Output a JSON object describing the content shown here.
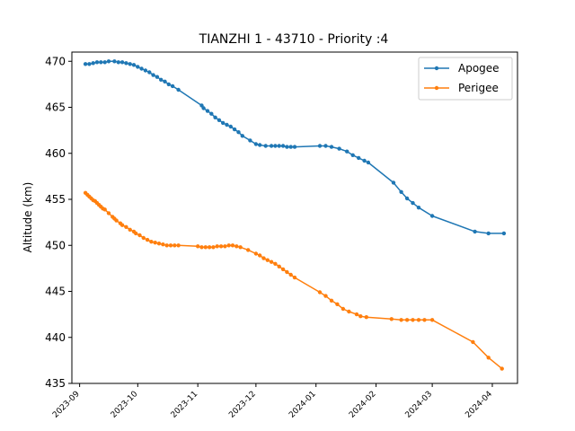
{
  "chart_data": {
    "type": "line",
    "title": "TIANZHI 1 - 43710 - Priority :4",
    "xlabel": "",
    "ylabel": "Altitude (km)",
    "ylim": [
      435,
      471
    ],
    "yticks": [
      435,
      440,
      445,
      450,
      455,
      460,
      465,
      470
    ],
    "xlim": [
      "2023-08-28",
      "2024-04-14"
    ],
    "xticks": [
      "2023-09",
      "2023-10",
      "2023-11",
      "2023-12",
      "2024-01",
      "2024-02",
      "2024-03",
      "2024-04"
    ],
    "grid": false,
    "legend_position": "top-right",
    "colors": {
      "apogee": "#1f77b4",
      "perigee": "#ff7f0e"
    },
    "series": [
      {
        "name": "Apogee",
        "points": [
          [
            "2023-09-04",
            469.7
          ],
          [
            "2023-09-06",
            469.7
          ],
          [
            "2023-09-08",
            469.8
          ],
          [
            "2023-09-10",
            469.9
          ],
          [
            "2023-09-12",
            469.9
          ],
          [
            "2023-09-14",
            469.9
          ],
          [
            "2023-09-16",
            470.0
          ],
          [
            "2023-09-19",
            470.0
          ],
          [
            "2023-09-21",
            469.9
          ],
          [
            "2023-09-23",
            469.9
          ],
          [
            "2023-09-25",
            469.8
          ],
          [
            "2023-09-27",
            469.7
          ],
          [
            "2023-09-29",
            469.6
          ],
          [
            "2023-10-01",
            469.4
          ],
          [
            "2023-10-03",
            469.2
          ],
          [
            "2023-10-05",
            469.0
          ],
          [
            "2023-10-07",
            468.8
          ],
          [
            "2023-10-09",
            468.5
          ],
          [
            "2023-10-11",
            468.3
          ],
          [
            "2023-10-13",
            468.0
          ],
          [
            "2023-10-15",
            467.8
          ],
          [
            "2023-10-17",
            467.5
          ],
          [
            "2023-10-19",
            467.3
          ],
          [
            "2023-10-22",
            466.9
          ],
          [
            "2023-11-03",
            465.2
          ],
          [
            "2023-11-04",
            464.9
          ],
          [
            "2023-11-06",
            464.6
          ],
          [
            "2023-11-08",
            464.3
          ],
          [
            "2023-11-10",
            463.9
          ],
          [
            "2023-11-12",
            463.6
          ],
          [
            "2023-11-14",
            463.3
          ],
          [
            "2023-11-16",
            463.1
          ],
          [
            "2023-11-18",
            462.9
          ],
          [
            "2023-11-20",
            462.6
          ],
          [
            "2023-11-22",
            462.3
          ],
          [
            "2023-11-24",
            461.9
          ],
          [
            "2023-11-28",
            461.4
          ],
          [
            "2023-12-01",
            461.0
          ],
          [
            "2023-12-03",
            460.9
          ],
          [
            "2023-12-06",
            460.8
          ],
          [
            "2023-12-09",
            460.8
          ],
          [
            "2023-12-11",
            460.8
          ],
          [
            "2023-12-13",
            460.8
          ],
          [
            "2023-12-15",
            460.8
          ],
          [
            "2023-12-17",
            460.7
          ],
          [
            "2023-12-19",
            460.7
          ],
          [
            "2023-12-21",
            460.7
          ],
          [
            "2024-01-03",
            460.8
          ],
          [
            "2024-01-06",
            460.8
          ],
          [
            "2024-01-09",
            460.7
          ],
          [
            "2024-01-13",
            460.5
          ],
          [
            "2024-01-17",
            460.2
          ],
          [
            "2024-01-20",
            459.8
          ],
          [
            "2024-01-23",
            459.5
          ],
          [
            "2024-01-26",
            459.2
          ],
          [
            "2024-01-28",
            459.0
          ],
          [
            "2024-02-10",
            456.8
          ],
          [
            "2024-02-14",
            455.8
          ],
          [
            "2024-02-17",
            455.1
          ],
          [
            "2024-02-20",
            454.6
          ],
          [
            "2024-02-23",
            454.1
          ],
          [
            "2024-03-01",
            453.2
          ],
          [
            "2024-03-23",
            451.5
          ],
          [
            "2024-03-30",
            451.3
          ],
          [
            "2024-04-07",
            451.3
          ]
        ]
      },
      {
        "name": "Perigee",
        "points": [
          [
            "2023-09-04",
            455.7
          ],
          [
            "2023-09-05",
            455.5
          ],
          [
            "2023-09-06",
            455.3
          ],
          [
            "2023-09-07",
            455.1
          ],
          [
            "2023-09-08",
            454.9
          ],
          [
            "2023-09-09",
            454.8
          ],
          [
            "2023-09-10",
            454.6
          ],
          [
            "2023-09-11",
            454.4
          ],
          [
            "2023-09-12",
            454.2
          ],
          [
            "2023-09-13",
            454.0
          ],
          [
            "2023-09-14",
            453.9
          ],
          [
            "2023-09-16",
            453.5
          ],
          [
            "2023-09-18",
            453.1
          ],
          [
            "2023-09-19",
            452.9
          ],
          [
            "2023-09-20",
            452.7
          ],
          [
            "2023-09-22",
            452.4
          ],
          [
            "2023-09-23",
            452.2
          ],
          [
            "2023-09-25",
            452.0
          ],
          [
            "2023-09-27",
            451.7
          ],
          [
            "2023-09-29",
            451.5
          ],
          [
            "2023-09-30",
            451.3
          ],
          [
            "2023-10-02",
            451.1
          ],
          [
            "2023-10-04",
            450.8
          ],
          [
            "2023-10-06",
            450.6
          ],
          [
            "2023-10-08",
            450.4
          ],
          [
            "2023-10-10",
            450.3
          ],
          [
            "2023-10-12",
            450.2
          ],
          [
            "2023-10-14",
            450.1
          ],
          [
            "2023-10-16",
            450.0
          ],
          [
            "2023-10-18",
            450.0
          ],
          [
            "2023-10-20",
            450.0
          ],
          [
            "2023-10-22",
            450.0
          ],
          [
            "2023-11-01",
            449.9
          ],
          [
            "2023-11-03",
            449.8
          ],
          [
            "2023-11-05",
            449.8
          ],
          [
            "2023-11-07",
            449.8
          ],
          [
            "2023-11-09",
            449.8
          ],
          [
            "2023-11-11",
            449.9
          ],
          [
            "2023-11-13",
            449.9
          ],
          [
            "2023-11-15",
            449.9
          ],
          [
            "2023-11-17",
            450.0
          ],
          [
            "2023-11-19",
            450.0
          ],
          [
            "2023-11-21",
            449.9
          ],
          [
            "2023-11-23",
            449.8
          ],
          [
            "2023-11-27",
            449.5
          ],
          [
            "2023-12-01",
            449.1
          ],
          [
            "2023-12-03",
            448.9
          ],
          [
            "2023-12-05",
            448.6
          ],
          [
            "2023-12-07",
            448.4
          ],
          [
            "2023-12-09",
            448.2
          ],
          [
            "2023-12-11",
            448.0
          ],
          [
            "2023-12-13",
            447.7
          ],
          [
            "2023-12-15",
            447.4
          ],
          [
            "2023-12-17",
            447.1
          ],
          [
            "2023-12-19",
            446.8
          ],
          [
            "2023-12-21",
            446.5
          ],
          [
            "2024-01-03",
            444.9
          ],
          [
            "2024-01-06",
            444.5
          ],
          [
            "2024-01-09",
            444.0
          ],
          [
            "2024-01-12",
            443.6
          ],
          [
            "2024-01-15",
            443.1
          ],
          [
            "2024-01-18",
            442.8
          ],
          [
            "2024-01-22",
            442.5
          ],
          [
            "2024-01-24",
            442.3
          ],
          [
            "2024-01-27",
            442.2
          ],
          [
            "2024-02-09",
            442.0
          ],
          [
            "2024-02-14",
            441.9
          ],
          [
            "2024-02-17",
            441.9
          ],
          [
            "2024-02-20",
            441.9
          ],
          [
            "2024-02-23",
            441.9
          ],
          [
            "2024-02-26",
            441.9
          ],
          [
            "2024-03-01",
            441.9
          ],
          [
            "2024-03-22",
            439.5
          ],
          [
            "2024-03-30",
            437.8
          ],
          [
            "2024-04-06",
            436.6
          ]
        ]
      }
    ]
  }
}
